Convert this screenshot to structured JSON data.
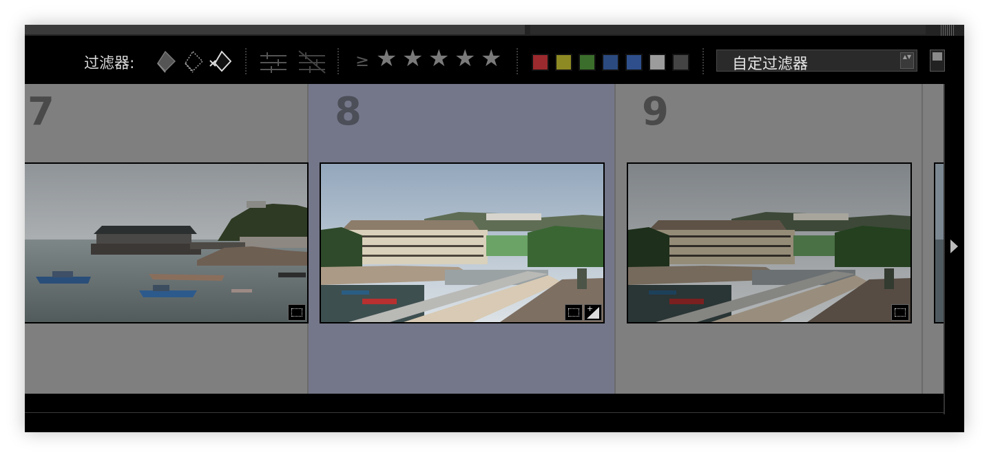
{
  "filter_bar": {
    "label": "过滤器:",
    "gte_symbol": "≥",
    "stars": [
      "★",
      "★",
      "★",
      "★",
      "★"
    ],
    "color_labels": [
      "#9a2a2e",
      "#8e8a23",
      "#3b6e2c",
      "#2b4a80",
      "#2e4f8c",
      "#9c9c9c",
      "#444444"
    ],
    "preset": "自定过滤器",
    "preset_arrows": "▲▼"
  },
  "cells": [
    {
      "number": "7",
      "selected": false,
      "badges": [
        "crop-icon"
      ]
    },
    {
      "number": "8",
      "selected": true,
      "badges": [
        "crop-icon",
        "exposure-icon"
      ]
    },
    {
      "number": "9",
      "selected": false,
      "badges": [
        "crop-icon"
      ]
    }
  ],
  "badge_text": {
    "exposure": "+"
  },
  "icons": [
    "flag-picked-icon",
    "flag-unflagged-icon",
    "flag-rejected-icon",
    "edited-icon",
    "unedited-icon",
    "right-arrow-icon"
  ]
}
